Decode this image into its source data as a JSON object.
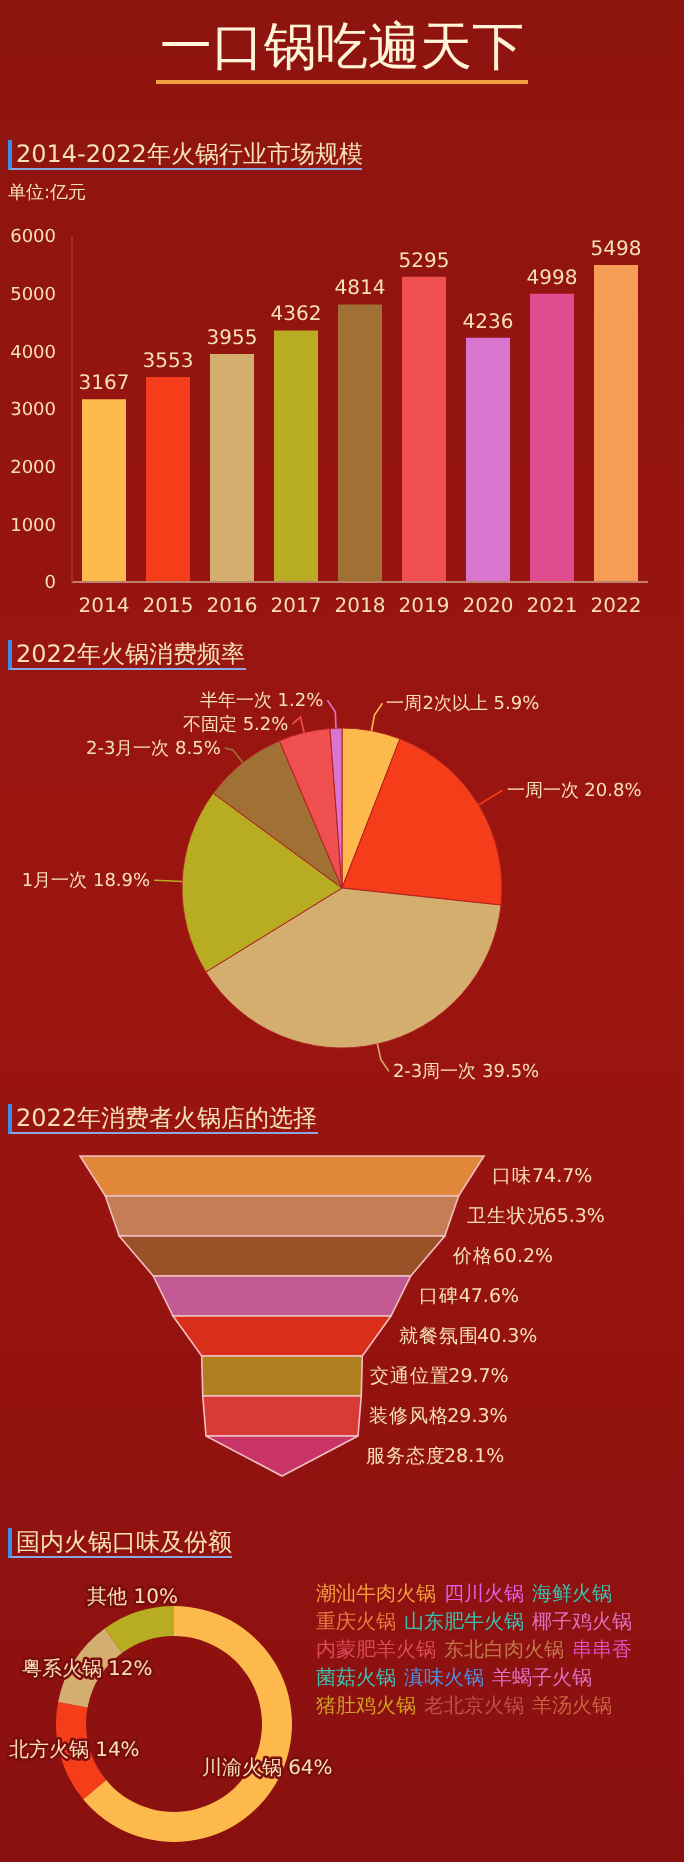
{
  "chart_data": [
    {
      "type": "other",
      "title": "一口锅吃遍天下"
    },
    {
      "type": "bar",
      "title": "2014-2022年火锅行业市场规模",
      "ylabel": "单位:亿元",
      "categories": [
        "2014",
        "2015",
        "2016",
        "2017",
        "2018",
        "2019",
        "2020",
        "2021",
        "2022"
      ],
      "values": [
        3167,
        3553,
        3955,
        4362,
        4814,
        5295,
        4236,
        4998,
        5498
      ],
      "colors": [
        "#fdb94c",
        "#f53d1a",
        "#d4ae6e",
        "#b8ad22",
        "#a07035",
        "#f04f4f",
        "#d975cf",
        "#e04a8e",
        "#f59c55"
      ],
      "ylim": [
        0,
        6000
      ],
      "yticks": [
        0,
        1000,
        2000,
        3000,
        4000,
        5000,
        6000
      ],
      "data_labels": true
    },
    {
      "type": "pie",
      "title": "2022年火锅消费频率",
      "categories": [
        "一周2次以上",
        "一周一次",
        "2-3周一次",
        "1月一次",
        "2-3月一次",
        "不固定",
        "半年一次"
      ],
      "values": [
        5.9,
        20.8,
        39.5,
        18.9,
        8.5,
        5.2,
        1.2
      ],
      "colors": [
        "#fdb94c",
        "#f53d1a",
        "#d4ae6e",
        "#b8ad22",
        "#a07035",
        "#f04f4f",
        "#d975cf"
      ],
      "value_labels": [
        "5.9%",
        "20.8%",
        "39.5%",
        "18.9%",
        "8.5%",
        "5.2%",
        "1.2%"
      ]
    },
    {
      "type": "other",
      "title": "2022年消费者火锅店的选择",
      "categories": [
        "口味",
        "卫生状况",
        "价格",
        "口碑",
        "就餐氛围",
        "交通位置",
        "装修风格",
        "服务态度"
      ],
      "values": [
        74.7,
        65.3,
        60.2,
        47.6,
        40.3,
        29.7,
        29.3,
        28.1
      ],
      "colors": [
        "#e0873a",
        "#c47d55",
        "#9a5128",
        "#c45a94",
        "#d92e1a",
        "#b08020",
        "#d83a38",
        "#c83468"
      ],
      "value_labels": [
        "74.7%",
        "65.3%",
        "60.2%",
        "47.6%",
        "40.3%",
        "29.7%",
        "29.3%",
        "28.1%"
      ]
    },
    {
      "type": "donut",
      "title": "国内火锅口味及份额",
      "categories": [
        "川渝火锅",
        "北方火锅",
        "粤系火锅",
        "其他"
      ],
      "values": [
        64,
        14,
        12,
        10
      ],
      "colors": [
        "#fdb94c",
        "#f53d1a",
        "#d4ae6e",
        "#b8ad22"
      ],
      "value_labels": [
        "64%",
        "14%",
        "12%",
        "10%"
      ]
    },
    {
      "type": "other",
      "categories": [
        "潮汕牛肉火锅",
        "四川火锅",
        "海鲜火锅",
        "重庆火锅",
        "山东肥牛火锅",
        "椰子鸡火锅",
        "内蒙肥羊火锅",
        "东北白肉火锅",
        "串串香",
        "菌菇火锅",
        "滇味火锅",
        "羊蝎子火锅",
        "猪肚鸡火锅",
        "老北京火锅",
        "羊汤火锅"
      ],
      "colors": [
        "#f5a03c",
        "#e060e8",
        "#3cc0b0",
        "#f0783c",
        "#3cc0b0",
        "#e070c0",
        "#e04a5a",
        "#c07848",
        "#e050c0",
        "#40c0b0",
        "#5090e0",
        "#e070c0",
        "#d0a020",
        "#c05050",
        "#d06040"
      ]
    }
  ]
}
